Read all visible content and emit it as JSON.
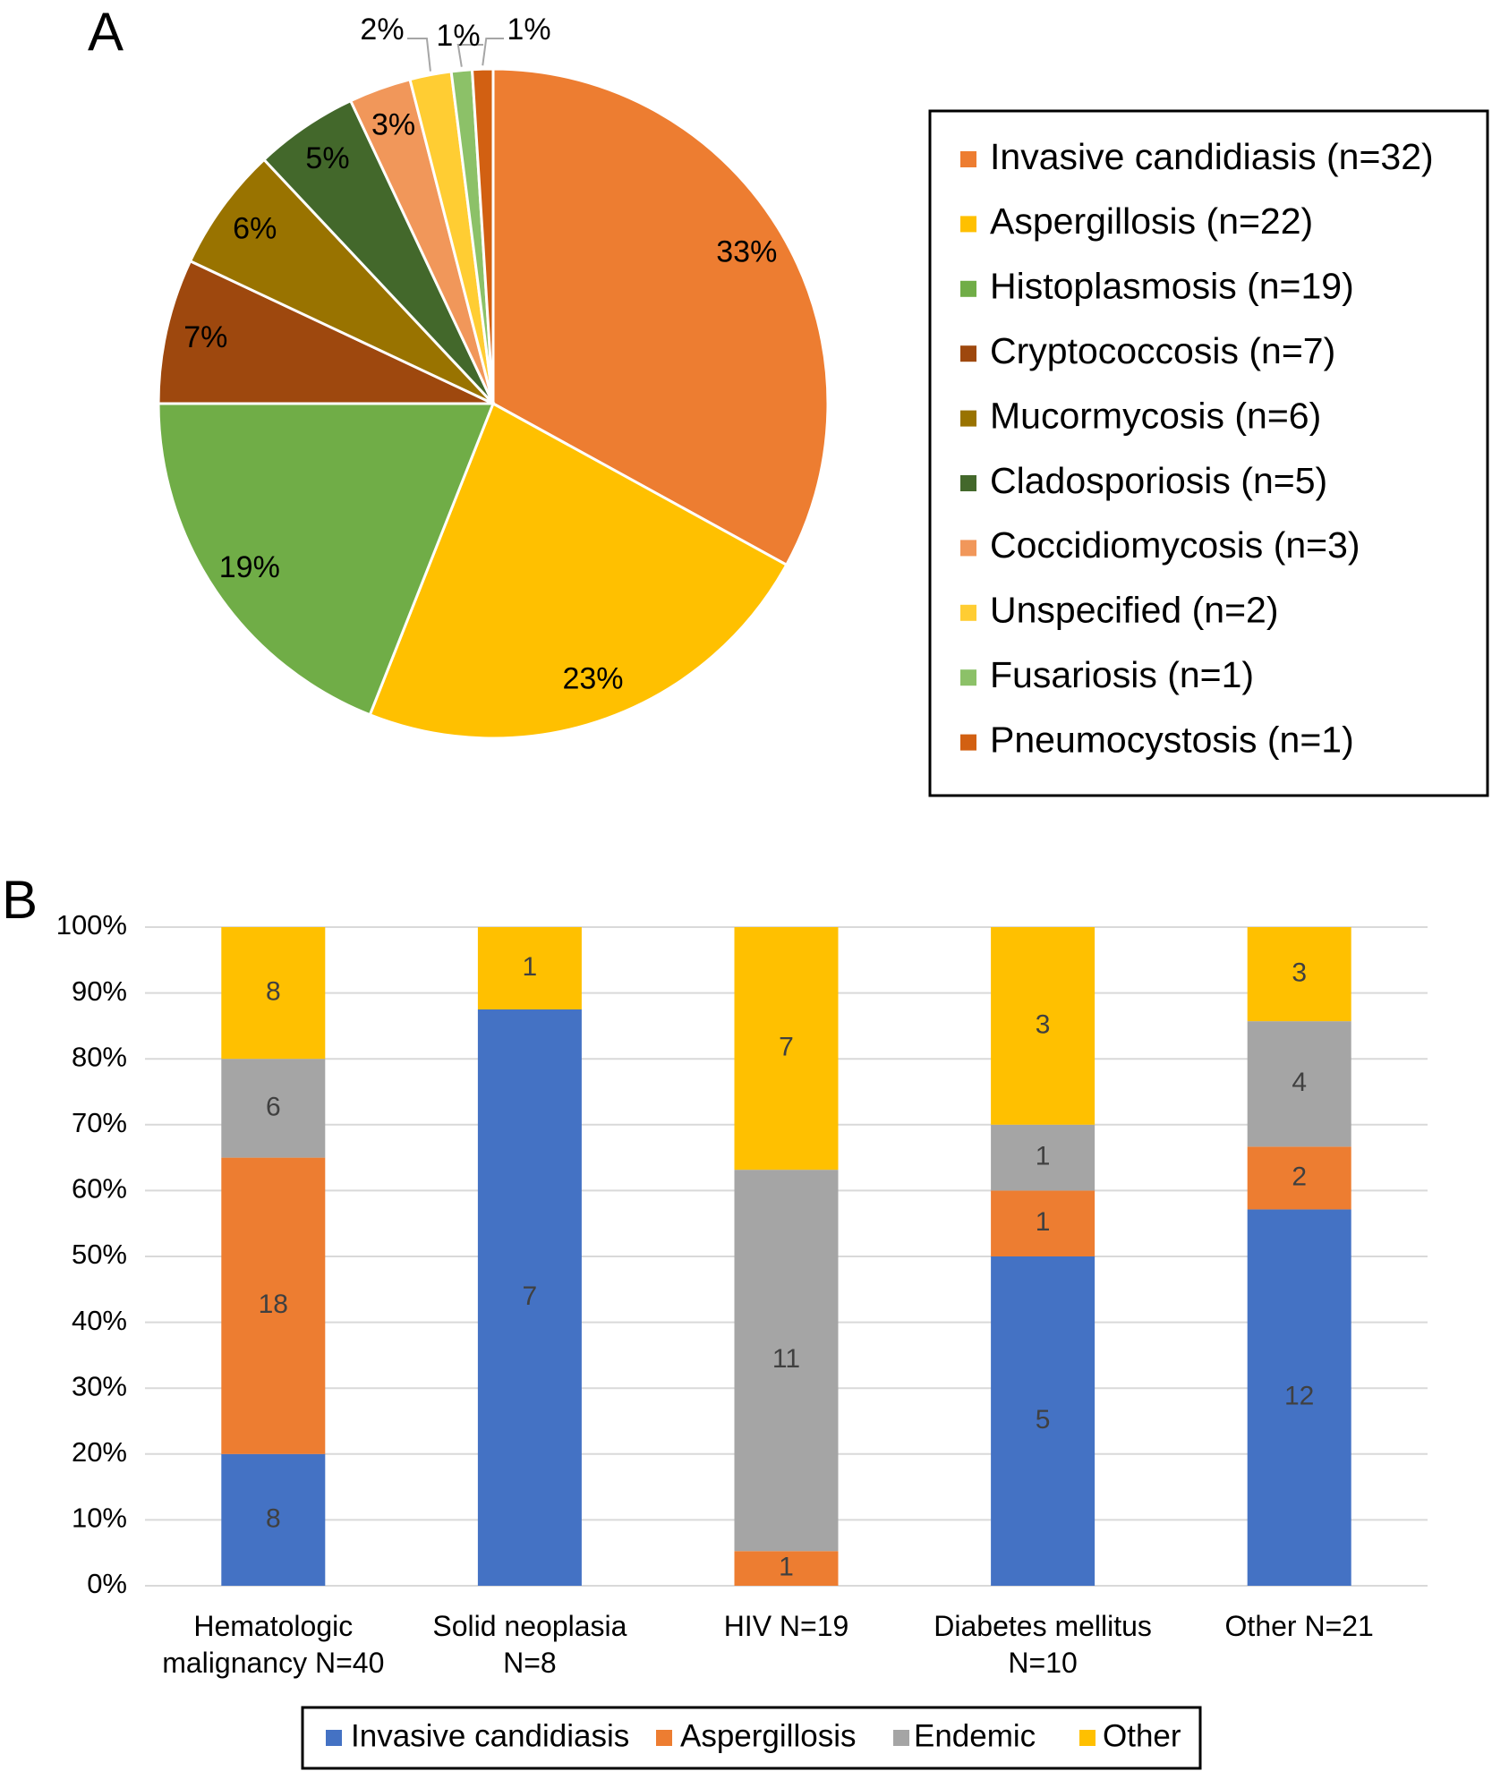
{
  "chart_data": [
    {
      "type": "pie",
      "panel_label": "A",
      "categories": [
        "Invasive candidiasis (n=32)",
        "Aspergillosis (n=22)",
        "Histoplasmosis (n=19)",
        "Cryptococcosis (n=7)",
        "Mucormycosis (n=6)",
        "Cladosporiosis (n=5)",
        "Coccidiomycosis (n=3)",
        "Unspecified (n=2)",
        "Fusariosis (n=1)",
        "Pneumocystosis (n=1)"
      ],
      "values": [
        33,
        23,
        19,
        7,
        6,
        5,
        3,
        2,
        1,
        1
      ],
      "value_labels": [
        "33%",
        "23%",
        "19%",
        "7%",
        "6%",
        "5%",
        "3%",
        "2%",
        "1%",
        "1%"
      ],
      "colors": [
        "#ED7D31",
        "#FFC000",
        "#70AD47",
        "#9E480E",
        "#997300",
        "#43682B",
        "#F1975A",
        "#FFCD33",
        "#8CC168",
        "#D26012"
      ],
      "legend": "right"
    },
    {
      "type": "bar",
      "panel_label": "B",
      "stacking": "percent",
      "categories": [
        [
          "Hematologic",
          "malignancy N=40"
        ],
        [
          "Solid neoplasia",
          "N=8"
        ],
        [
          "HIV N=19"
        ],
        [
          "Diabetes mellitus",
          "N=10"
        ],
        [
          "Other N=21"
        ]
      ],
      "series": [
        {
          "name": "Invasive candidiasis",
          "color": "#4472C4",
          "values": [
            8,
            7,
            0,
            5,
            12
          ]
        },
        {
          "name": "Aspergillosis",
          "color": "#ED7D31",
          "values": [
            18,
            0,
            1,
            1,
            2
          ]
        },
        {
          "name": "Endemic",
          "color": "#A5A5A5",
          "values": [
            6,
            0,
            11,
            1,
            4
          ]
        },
        {
          "name": "Other",
          "color": "#FFC000",
          "values": [
            8,
            1,
            7,
            3,
            3
          ]
        }
      ],
      "ylim": [
        0,
        100
      ],
      "yticks": [
        {
          "value": 0,
          "label": "0%"
        },
        {
          "value": 10,
          "label": "10%"
        },
        {
          "value": 20,
          "label": "20%"
        },
        {
          "value": 30,
          "label": "30%"
        },
        {
          "value": 40,
          "label": "40%"
        },
        {
          "value": 50,
          "label": "50%"
        },
        {
          "value": 60,
          "label": "60%"
        },
        {
          "value": 70,
          "label": "70%"
        },
        {
          "value": 80,
          "label": "80%"
        },
        {
          "value": 90,
          "label": "90%"
        },
        {
          "value": 100,
          "label": "100%"
        }
      ],
      "grid": true,
      "legend": "bottom"
    }
  ]
}
